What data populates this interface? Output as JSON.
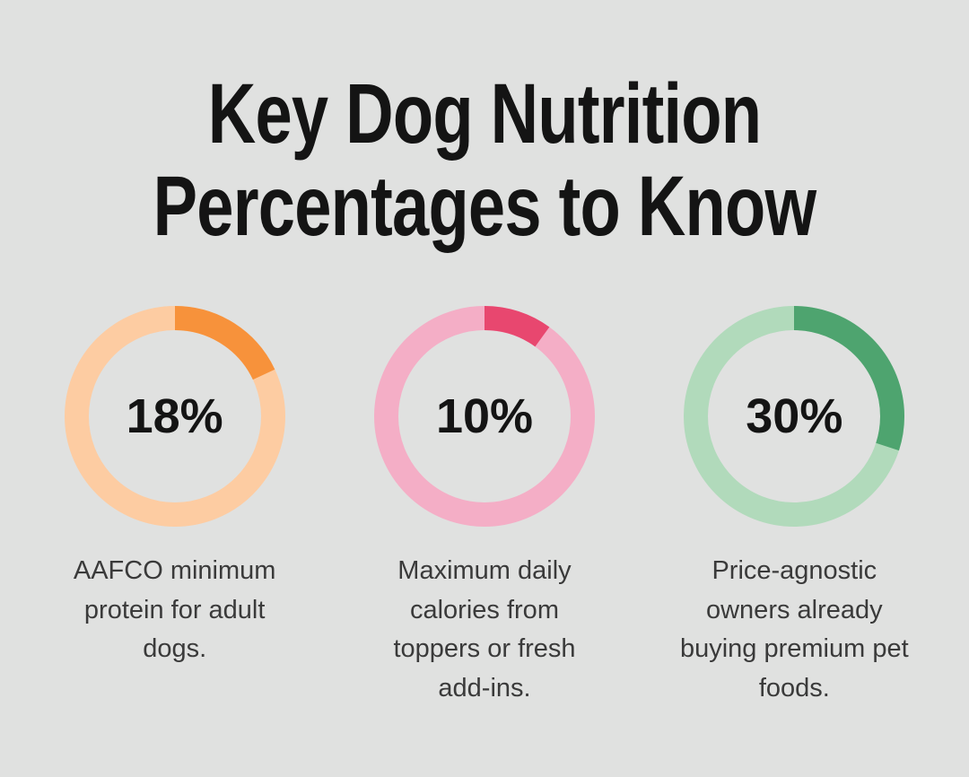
{
  "title_lines": [
    "Key Dog Nutrition",
    "Percentages to Know"
  ],
  "colors": {
    "background": "#E0E1E0",
    "title_text": "#141414",
    "percent_text": "#141414",
    "caption_text": "#3A3A3A"
  },
  "chart_data": {
    "type": "pie",
    "subtype": "donut-progress",
    "title": "Key Dog Nutrition Percentages to Know",
    "start_angle_deg": 0,
    "direction": "clockwise",
    "donuts": [
      {
        "label": "18%",
        "value": 18,
        "remainder": 82,
        "fill_color": "#F7923B",
        "track_color": "#FDCCA2",
        "caption": "AAFCO minimum protein for adult dogs.",
        "caption_lines": [
          "AAFCO minimum",
          "protein for adult",
          "dogs."
        ]
      },
      {
        "label": "10%",
        "value": 10,
        "remainder": 90,
        "fill_color": "#E8476F",
        "track_color": "#F4AEC6",
        "caption": "Maximum daily calories from toppers or fresh add-ins.",
        "caption_lines": [
          "Maximum daily",
          "calories from",
          "toppers or fresh",
          "add-ins."
        ]
      },
      {
        "label": "30%",
        "value": 30,
        "remainder": 70,
        "fill_color": "#4EA46F",
        "track_color": "#B1DABB",
        "caption": "Price-agnostic owners already buying premium pet foods.",
        "caption_lines": [
          "Price-agnostic",
          "owners already",
          "buying premium pet",
          "foods."
        ]
      }
    ]
  }
}
